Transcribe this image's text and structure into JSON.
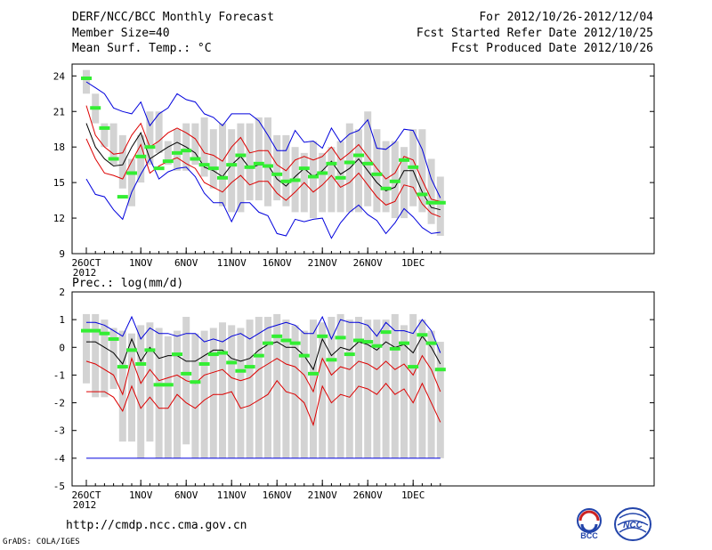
{
  "header": {
    "title": "DERF/NCC/BCC Monthly Forecast",
    "member": "Member Size=40",
    "variable": "Mean Surf. Temp.: °C",
    "period": "For 2012/10/26-2012/12/04",
    "refer": "Fcst Started Refer Date 2012/10/25",
    "produced": "Fcst Produced Date 2012/10/26"
  },
  "footer": {
    "url": "http://cmdp.ncc.cma.gov.cn",
    "credit": "GrADS: COLA/IGES",
    "bcc_logo_text": "BCC",
    "ncc_logo_text": "NCC"
  },
  "colors": {
    "box": "#d3d3d3",
    "obs": "#33ee33",
    "mean": "#000000",
    "spread": "#dd0000",
    "extreme": "#0000dd"
  },
  "chart_data": [
    {
      "type": "box-ensemble",
      "title": "Mean Surf. Temp.: °C",
      "ylim": [
        9,
        25
      ],
      "yticks": [
        9,
        12,
        15,
        18,
        21,
        24
      ],
      "xticks": [
        {
          "day": 0,
          "label": "26OCT",
          "sub": "2012"
        },
        {
          "day": 6,
          "label": "1NOV"
        },
        {
          "day": 11,
          "label": "6NOV"
        },
        {
          "day": 16,
          "label": "11NOV"
        },
        {
          "day": 21,
          "label": "16NOV"
        },
        {
          "day": 26,
          "label": "21NOV"
        },
        {
          "day": 31,
          "label": "26NOV"
        },
        {
          "day": 36,
          "label": "1DEC"
        }
      ],
      "days": 40,
      "box_low": [
        22.5,
        20,
        18,
        16.5,
        14.5,
        13,
        15,
        16.5,
        17.5,
        16.5,
        16,
        16,
        16.5,
        15.5,
        14.5,
        13,
        12.5,
        12.5,
        13.5,
        13.5,
        13,
        13.5,
        13,
        12.5,
        12.5,
        12,
        12.5,
        12.5,
        12.5,
        12.5,
        12.5,
        13,
        12.5,
        12.5,
        12,
        12,
        13,
        12.5,
        11.5,
        10.5
      ],
      "box_high": [
        24.5,
        22.5,
        20,
        20,
        19,
        17,
        19,
        21,
        21,
        18.5,
        19.5,
        20,
        20,
        20.5,
        19.5,
        20,
        19.5,
        20,
        20,
        20.5,
        20.5,
        19,
        19,
        18,
        17.5,
        18.5,
        17.5,
        18,
        18.5,
        20,
        19.5,
        21,
        19.5,
        18.5,
        18.5,
        18,
        19.5,
        19.5,
        17,
        15.5
      ],
      "obs": [
        23.8,
        21.3,
        19.6,
        17.0,
        13.8,
        15.8,
        17.2,
        18.0,
        16.2,
        16.8,
        17.5,
        17.7,
        17.0,
        16.5,
        16.2,
        15.4,
        16.5,
        17.3,
        16.3,
        16.6,
        16.4,
        15.7,
        15.1,
        15.2,
        16.2,
        15.5,
        15.8,
        16.6,
        15.4,
        16.7,
        17.3,
        16.6,
        15.7,
        14.5,
        15.1,
        16.9,
        16.3,
        14.0,
        13.3,
        13.3
      ],
      "mean": [
        20,
        18,
        17,
        16.4,
        16.5,
        18,
        19.2,
        17,
        17.5,
        18,
        18.4,
        18,
        17.5,
        16.3,
        16,
        15.5,
        16.5,
        17.2,
        16.2,
        16.5,
        16.5,
        15.3,
        14.7,
        15.5,
        16.2,
        15.5,
        16,
        16.8,
        15.7,
        16.2,
        17,
        16,
        15,
        14.3,
        14.6,
        16,
        16,
        14.2,
        12.9,
        12.7
      ],
      "upper": [
        21.5,
        19,
        18,
        17.4,
        17.5,
        19,
        20,
        18,
        18.5,
        19.2,
        19.6,
        19.2,
        18.7,
        17.5,
        17.3,
        16.8,
        18,
        18.8,
        17.5,
        17.7,
        17.7,
        16.5,
        16,
        16.9,
        17.2,
        16.9,
        17.2,
        18,
        16.9,
        17.5,
        18.2,
        17.2,
        16.2,
        15.3,
        15.8,
        17.2,
        16.9,
        15.2,
        13.6,
        13.4
      ],
      "lower": [
        18.7,
        17,
        15.8,
        15.6,
        15.3,
        16.8,
        18.2,
        15.8,
        16.4,
        16.8,
        17.1,
        16.6,
        16.2,
        15,
        14.6,
        14.2,
        15,
        15.6,
        14.8,
        15.1,
        15.1,
        14.1,
        13.5,
        14.2,
        15,
        14.2,
        14.8,
        15.6,
        14.6,
        15,
        15.8,
        14.8,
        13.8,
        13.1,
        13.4,
        14.8,
        14.6,
        13.2,
        12.4,
        12.1
      ],
      "max": [
        23.5,
        23,
        22.5,
        21.3,
        21,
        20.8,
        21.8,
        19.8,
        20.8,
        21.3,
        22.5,
        22,
        21.8,
        20.8,
        20.5,
        19.8,
        20.8,
        20.8,
        20.8,
        20.2,
        19,
        17.7,
        17.7,
        19.4,
        18.4,
        18.5,
        17.9,
        19.6,
        18.4,
        19.1,
        19.4,
        20.3,
        17.9,
        17.8,
        18.4,
        19.5,
        19.4,
        17.8,
        15.3,
        13.7
      ],
      "min": [
        15.3,
        14,
        13.8,
        12.7,
        11.9,
        14.2,
        15.7,
        17,
        15.3,
        15.9,
        16.2,
        16.3,
        15.5,
        14.1,
        13.3,
        13.3,
        11.7,
        13.3,
        13.3,
        12.5,
        12.2,
        10.7,
        10.5,
        11.9,
        11.7,
        11.9,
        12,
        10.3,
        11.6,
        12.5,
        13.1,
        12.3,
        11.8,
        10.7,
        11.6,
        12.8,
        12.1,
        11.2,
        10.7,
        10.8
      ]
    },
    {
      "type": "box-ensemble",
      "title": "Prec.: log(mm/d)",
      "ylim": [
        -5,
        2
      ],
      "yticks": [
        -5,
        -4,
        -3,
        -2,
        -1,
        0,
        1,
        2
      ],
      "xticks": [
        {
          "day": 0,
          "label": "26OCT",
          "sub": "2012"
        },
        {
          "day": 6,
          "label": "1NOV"
        },
        {
          "day": 11,
          "label": "6NOV"
        },
        {
          "day": 16,
          "label": "11NOV"
        },
        {
          "day": 21,
          "label": "16NOV"
        },
        {
          "day": 26,
          "label": "21NOV"
        },
        {
          "day": 31,
          "label": "26NOV"
        },
        {
          "day": 36,
          "label": "1DEC"
        }
      ],
      "days": 40,
      "box_low": [
        -1.3,
        -1.8,
        -1.8,
        -1.5,
        -3.4,
        -3.4,
        -4,
        -3.4,
        -4,
        -4,
        -4,
        -3.5,
        -4,
        -4,
        -4,
        -4,
        -4,
        -4,
        -4,
        -4,
        -4,
        -4,
        -4,
        -4,
        -4,
        -4,
        -4,
        -4,
        -4,
        -4,
        -4,
        -4,
        -4,
        -4,
        -4,
        -4,
        -4,
        -4,
        -4,
        -4
      ],
      "box_high": [
        1.2,
        1.2,
        1,
        0.7,
        0.6,
        0.5,
        0.8,
        0.9,
        0.7,
        0.4,
        0.6,
        1.1,
        0.5,
        0.6,
        0.7,
        0.9,
        0.8,
        0.7,
        1,
        1.1,
        1.1,
        1.2,
        1,
        0.8,
        0.6,
        1,
        0.9,
        1.1,
        1.2,
        1,
        1.1,
        1,
        1,
        1,
        1.2,
        0.8,
        1.2,
        1,
        0.6,
        0.2
      ],
      "obs": [
        0.6,
        0.6,
        0.5,
        0.3,
        -0.7,
        -0.1,
        -0.6,
        -0.1,
        -1.35,
        -1.35,
        -0.25,
        -0.95,
        -1.25,
        -0.6,
        -0.25,
        -0.2,
        -0.55,
        -0.85,
        -0.7,
        -0.3,
        0.15,
        0.4,
        0.25,
        0.15,
        -0.3,
        -0.95,
        0.4,
        -0.45,
        0.35,
        -0.25,
        0.25,
        0.2,
        0.05,
        0.55,
        -0.05,
        0.15,
        -0.7,
        0.45,
        0.15,
        -0.8
      ],
      "mean": [
        0.2,
        0.2,
        0,
        -0.2,
        -0.6,
        0.3,
        -0.5,
        0,
        -0.4,
        -0.3,
        -0.3,
        -0.5,
        -0.5,
        -0.3,
        -0.1,
        -0.1,
        -0.4,
        -0.5,
        -0.4,
        -0.1,
        0.1,
        0.2,
        0,
        0,
        -0.3,
        -0.8,
        0.3,
        -0.3,
        0,
        -0.1,
        0.2,
        0.1,
        -0.1,
        0.2,
        0,
        0.1,
        -0.2,
        0.4,
        0,
        -0.6
      ],
      "upper": [
        -0.5,
        -0.6,
        -0.8,
        -1,
        -1.7,
        -0.4,
        -1.3,
        -0.8,
        -1.2,
        -1.1,
        -1,
        -1.2,
        -1.3,
        -1,
        -0.9,
        -0.8,
        -1.1,
        -1.2,
        -1.1,
        -0.8,
        -0.6,
        -0.4,
        -0.6,
        -0.7,
        -1,
        -1.6,
        -0.4,
        -1,
        -0.7,
        -0.8,
        -0.5,
        -0.6,
        -0.8,
        -0.5,
        -0.8,
        -0.6,
        -1,
        -0.3,
        -0.8,
        -1.6
      ],
      "lower": [
        -1.6,
        -1.6,
        -1.6,
        -1.8,
        -2.3,
        -1.4,
        -2.2,
        -1.8,
        -2.2,
        -2.2,
        -1.7,
        -2,
        -2.2,
        -1.9,
        -1.7,
        -1.7,
        -1.6,
        -2.2,
        -2.1,
        -1.9,
        -1.7,
        -1.2,
        -1.6,
        -1.7,
        -2,
        -2.8,
        -1.4,
        -2,
        -1.7,
        -1.8,
        -1.4,
        -1.5,
        -1.7,
        -1.3,
        -1.7,
        -1.5,
        -2,
        -1.3,
        -2,
        -2.7
      ],
      "max": [
        0.9,
        0.9,
        0.8,
        0.6,
        0.4,
        1.1,
        0.3,
        0.7,
        0.5,
        0.5,
        0.4,
        0.5,
        0.5,
        0.2,
        0.3,
        0.2,
        0.4,
        0.5,
        0.3,
        0.5,
        0.7,
        0.8,
        0.9,
        0.8,
        0.5,
        0.5,
        1.1,
        0.3,
        1,
        0.9,
        0.9,
        0.8,
        0.4,
        0.9,
        0.6,
        0.6,
        0.5,
        1,
        0.6,
        -0.2
      ],
      "min": [
        -4,
        -4,
        -4,
        -4,
        -4,
        -4,
        -4,
        -4,
        -4,
        -4,
        -4,
        -4,
        -4,
        -4,
        -4,
        -4,
        -4,
        -4,
        -4,
        -4,
        -4,
        -4,
        -4,
        -4,
        -4,
        -4,
        -4,
        -4,
        -4,
        -4,
        -4,
        -4,
        -4,
        -4,
        -4,
        -4,
        -4,
        -4,
        -4,
        -4
      ]
    }
  ]
}
